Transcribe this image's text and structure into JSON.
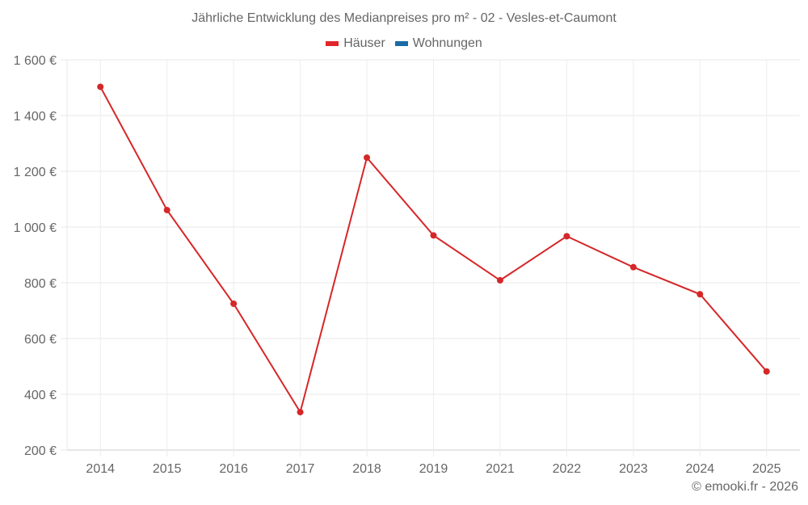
{
  "title": "Jährliche Entwicklung des Medianpreises pro m² - 02 - Vesles-et-Caumont",
  "legend": [
    {
      "label": "Häuser",
      "color": "#e0262b"
    },
    {
      "label": "Wohnungen",
      "color": "#1a6aa6"
    }
  ],
  "credit": "© emooki.fr - 2026",
  "chart_data": {
    "type": "line",
    "title": "Jährliche Entwicklung des Medianpreises pro m² - 02 - Vesles-et-Caumont",
    "xlabel": "",
    "ylabel": "",
    "categories": [
      "2014",
      "2015",
      "2016",
      "2017",
      "2018",
      "2019",
      "2021",
      "2022",
      "2023",
      "2024",
      "2025"
    ],
    "series": [
      {
        "name": "Häuser",
        "color": "#d62728",
        "values": [
          1503,
          1061,
          725,
          336,
          1249,
          970,
          809,
          967,
          856,
          759,
          482
        ]
      },
      {
        "name": "Wohnungen",
        "color": "#1a6aa6",
        "values": []
      }
    ],
    "ylim": [
      200,
      1600
    ],
    "yticks": [
      200,
      400,
      600,
      800,
      1000,
      1200,
      1400,
      1600
    ],
    "ytick_labels": [
      "200 €",
      "400 €",
      "600 €",
      "800 €",
      "1 000 €",
      "1 200 €",
      "1 400 €",
      "1 600 €"
    ],
    "grid": true,
    "legend_position": "top"
  }
}
